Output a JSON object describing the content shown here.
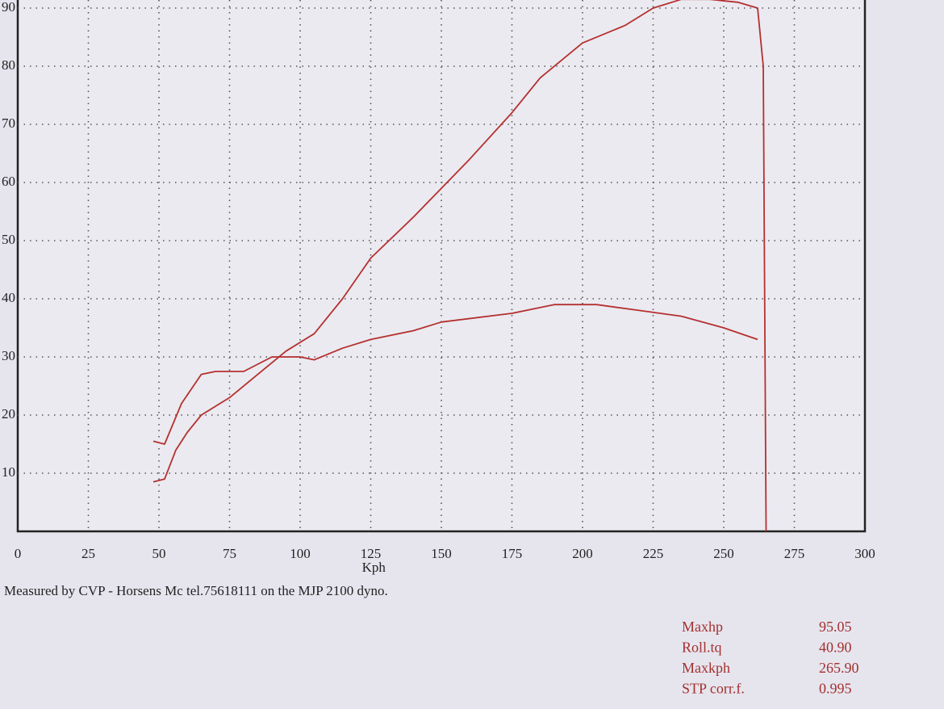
{
  "chart_data": {
    "type": "line",
    "x_label": "Kph",
    "xlim": [
      0,
      300
    ],
    "xticks": [
      0,
      25,
      50,
      75,
      100,
      125,
      150,
      175,
      200,
      225,
      250,
      275,
      300
    ],
    "ylim": [
      0,
      90
    ],
    "yticks": [
      10,
      20,
      30,
      40,
      50,
      60,
      70,
      80,
      90
    ],
    "grid": true,
    "series": [
      {
        "color": "#b5302f",
        "x": [
          48,
          52,
          56,
          60,
          65,
          75,
          85,
          95,
          105,
          115,
          125,
          140,
          150,
          160,
          175,
          185,
          200,
          215,
          225,
          235,
          245,
          255,
          262,
          264,
          265
        ],
        "values": [
          8.5,
          9,
          14,
          17,
          20,
          23,
          27,
          31,
          34,
          40,
          47,
          54,
          59,
          64,
          72,
          78,
          84,
          87,
          90,
          91.5,
          91.5,
          91,
          90,
          80,
          0
        ]
      },
      {
        "color": "#b5302f",
        "x": [
          48,
          52,
          58,
          65,
          70,
          80,
          90,
          100,
          105,
          115,
          125,
          140,
          150,
          175,
          190,
          205,
          220,
          235,
          250,
          262
        ],
        "values": [
          15.5,
          15,
          22,
          27,
          27.5,
          27.5,
          30,
          30,
          29.5,
          31.5,
          33,
          34.5,
          36,
          37.5,
          39,
          39,
          38,
          37,
          35,
          33
        ]
      }
    ]
  },
  "footer": "Measured by CVP - Horsens Mc tel.75618111 on the MJP 2100 dyno.",
  "stats": [
    {
      "label": "Maxhp",
      "value": "95.05"
    },
    {
      "label": "Roll.tq",
      "value": "40.90"
    },
    {
      "label": "Maxkph",
      "value": "265.90"
    },
    {
      "label": "STP corr.f.",
      "value": "0.995"
    }
  ]
}
